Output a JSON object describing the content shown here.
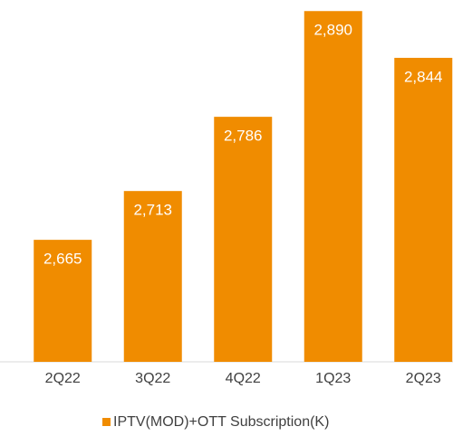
{
  "chart_data": {
    "type": "bar",
    "categories": [
      "2Q22",
      "3Q22",
      "4Q22",
      "1Q23",
      "2Q23"
    ],
    "series": [
      {
        "name": "IPTV(MOD)+OTT Subscription(K)",
        "color": "#f08c00",
        "values": [
          2665,
          2713,
          2786,
          2890,
          2844
        ],
        "value_labels": [
          "2,665",
          "2,713",
          "2,786",
          "2,890",
          "2,844"
        ]
      }
    ],
    "ylim": [
      2545,
      2900
    ]
  }
}
